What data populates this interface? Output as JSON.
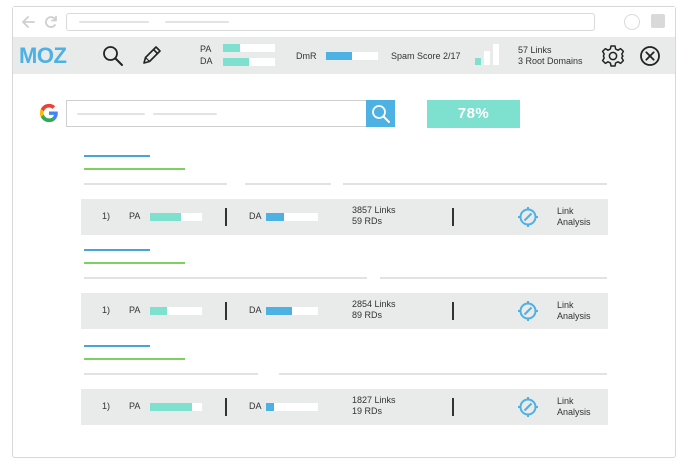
{
  "toolbar": {
    "brand": "MOZ",
    "pa_label": "PA",
    "da_label": "DA",
    "pa_fill": 0.33,
    "da_fill": 0.5,
    "dmr_label": "DmR",
    "dmr_fill": 0.5,
    "spam_label": "Spam Score 2/17",
    "links_line": "57 Links",
    "root_domains_line": "3 Root Domains",
    "icons": [
      "search-icon",
      "pencil-icon",
      "gear-icon",
      "close-icon"
    ],
    "accent_teal": "#7ee0cf",
    "accent_blue": "#4db1e4"
  },
  "serp": {
    "percent": "78%"
  },
  "results": [
    {
      "rank": "1)",
      "pa_label": "PA",
      "da_label": "DA",
      "pa_fill": 0.6,
      "da_fill": 0.35,
      "links": "3857 Links",
      "rds": "59 RDs",
      "link_analysis_line1": "Link",
      "link_analysis_line2": "Analysis"
    },
    {
      "rank": "1)",
      "pa_label": "PA",
      "da_label": "DA",
      "pa_fill": 0.33,
      "da_fill": 0.5,
      "links": "2854 Links",
      "rds": "89 RDs",
      "link_analysis_line1": "Link",
      "link_analysis_line2": "Analysis"
    },
    {
      "rank": "1)",
      "pa_label": "PA",
      "da_label": "DA",
      "pa_fill": 0.8,
      "da_fill": 0.15,
      "links": "1827 Links",
      "rds": "19 RDs",
      "link_analysis_line1": "Link",
      "link_analysis_line2": "Analysis"
    }
  ]
}
